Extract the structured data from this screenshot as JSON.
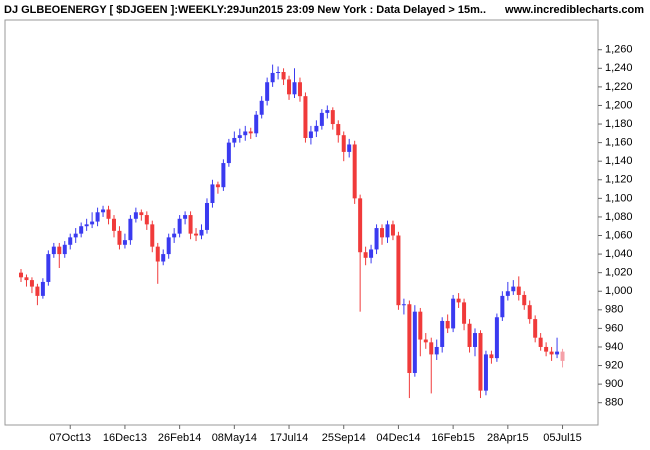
{
  "chart_data": {
    "type": "candlestick",
    "title": "DJ GLBEOENERGY [ $DJGEEN ]:WEEKLY:29Jun2015 23:09 New York : Data Delayed > 15m..",
    "source": "www.incrediblecharts.com",
    "categories": [
      null,
      null,
      null,
      null,
      null,
      null,
      null,
      null,
      null,
      "07Oct13",
      null,
      null,
      null,
      null,
      null,
      null,
      null,
      null,
      null,
      "16Dec13",
      null,
      null,
      null,
      null,
      null,
      null,
      null,
      null,
      null,
      "26Feb14",
      null,
      null,
      null,
      null,
      null,
      null,
      null,
      null,
      null,
      "08May14",
      null,
      null,
      null,
      null,
      null,
      null,
      null,
      null,
      null,
      "17Jul14",
      null,
      null,
      null,
      null,
      null,
      null,
      null,
      null,
      null,
      "25Sep14",
      null,
      null,
      null,
      null,
      null,
      null,
      null,
      null,
      null,
      "04Dec14",
      null,
      null,
      null,
      null,
      null,
      null,
      null,
      null,
      null,
      "16Feb15",
      null,
      null,
      null,
      null,
      null,
      null,
      null,
      null,
      null,
      "28Apr15",
      null,
      null,
      null,
      null,
      null,
      null,
      null,
      null,
      null,
      "05Jul15"
    ],
    "open": [
      1020,
      1015,
      1012,
      1005,
      995,
      1010,
      1040,
      1048,
      1040,
      1050,
      1058,
      1062,
      1070,
      1072,
      1075,
      1085,
      1088,
      1078,
      1065,
      1050,
      1055,
      1078,
      1085,
      1082,
      1072,
      1048,
      1032,
      1040,
      1058,
      1062,
      1078,
      1082,
      1062,
      1060,
      1066,
      1095,
      1115,
      1112,
      1138,
      1160,
      1165,
      1168,
      1172,
      1170,
      1190,
      1205,
      1225,
      1235,
      1236,
      1228,
      1212,
      1225,
      1210,
      1165,
      1172,
      1178,
      1192,
      1195,
      1180,
      1168,
      1150,
      1158,
      1100,
      1042,
      1036,
      1045,
      1068,
      1058,
      1072,
      1060,
      985,
      986,
      912,
      978,
      948,
      945,
      932,
      940,
      968,
      960,
      992,
      988,
      965,
      940,
      955,
      893,
      932,
      928,
      972,
      995,
      1000,
      1005,
      996,
      985,
      970,
      950,
      940,
      935,
      932,
      935
    ],
    "high": [
      1024,
      1018,
      1015,
      1008,
      1014,
      1044,
      1052,
      1052,
      1054,
      1062,
      1068,
      1074,
      1078,
      1085,
      1090,
      1092,
      1092,
      1082,
      1070,
      1062,
      1082,
      1090,
      1088,
      1086,
      1076,
      1052,
      1045,
      1062,
      1068,
      1082,
      1086,
      1086,
      1068,
      1072,
      1100,
      1120,
      1118,
      1142,
      1164,
      1172,
      1175,
      1178,
      1176,
      1194,
      1210,
      1230,
      1244,
      1242,
      1240,
      1232,
      1240,
      1230,
      1214,
      1178,
      1184,
      1196,
      1200,
      1198,
      1184,
      1172,
      1164,
      1162,
      1104,
      1048,
      1050,
      1072,
      1072,
      1076,
      1076,
      1064,
      992,
      990,
      985,
      982,
      955,
      950,
      948,
      972,
      975,
      996,
      998,
      992,
      970,
      960,
      958,
      936,
      936,
      976,
      1000,
      1010,
      1012,
      1016,
      1000,
      990,
      974,
      955,
      945,
      940,
      950,
      938
    ],
    "low": [
      1010,
      1005,
      998,
      985,
      992,
      1006,
      1036,
      1025,
      1036,
      1045,
      1052,
      1058,
      1065,
      1068,
      1070,
      1080,
      1072,
      1058,
      1045,
      1046,
      1050,
      1074,
      1076,
      1066,
      1042,
      1008,
      1028,
      1035,
      1052,
      1058,
      1072,
      1056,
      1054,
      1056,
      1062,
      1090,
      1105,
      1108,
      1134,
      1155,
      1160,
      1162,
      1164,
      1166,
      1186,
      1200,
      1220,
      1228,
      1222,
      1206,
      1208,
      1204,
      1160,
      1158,
      1166,
      1174,
      1186,
      1174,
      1160,
      1140,
      1144,
      1094,
      978,
      1028,
      1030,
      1040,
      1050,
      1052,
      1055,
      980,
      975,
      885,
      908,
      930,
      938,
      890,
      926,
      934,
      955,
      956,
      982,
      958,
      934,
      930,
      885,
      888,
      922,
      924,
      968,
      990,
      996,
      990,
      980,
      965,
      945,
      936,
      930,
      925,
      928,
      918
    ],
    "close": [
      1015,
      1012,
      1005,
      995,
      1010,
      1040,
      1048,
      1040,
      1050,
      1058,
      1062,
      1070,
      1072,
      1075,
      1085,
      1088,
      1078,
      1065,
      1050,
      1055,
      1078,
      1085,
      1082,
      1072,
      1048,
      1032,
      1040,
      1058,
      1062,
      1078,
      1082,
      1062,
      1060,
      1066,
      1095,
      1115,
      1112,
      1138,
      1160,
      1165,
      1168,
      1172,
      1170,
      1190,
      1205,
      1225,
      1235,
      1236,
      1228,
      1212,
      1225,
      1210,
      1165,
      1172,
      1178,
      1192,
      1195,
      1180,
      1168,
      1150,
      1158,
      1100,
      1042,
      1036,
      1045,
      1068,
      1058,
      1072,
      1060,
      985,
      986,
      912,
      978,
      948,
      945,
      932,
      940,
      968,
      960,
      992,
      988,
      965,
      940,
      955,
      893,
      932,
      928,
      972,
      995,
      1000,
      1005,
      996,
      985,
      970,
      950,
      940,
      935,
      932,
      935,
      925
    ],
    "up_color": "#3a3af0",
    "down_color": "#f03a3a",
    "current_color": "#f5a0a8",
    "ylim": [
      856,
      1292
    ],
    "yticks": [
      880,
      900,
      920,
      940,
      960,
      980,
      {
        "value": 1000,
        "label": "1,000"
      },
      {
        "value": 1020,
        "label": "1,020"
      },
      {
        "value": 1040,
        "label": "1,040"
      },
      {
        "value": 1060,
        "label": "1,060"
      },
      {
        "value": 1080,
        "label": "1,080"
      },
      {
        "value": 1100,
        "label": "1,100"
      },
      {
        "value": 1120,
        "label": "1,120"
      },
      {
        "value": 1140,
        "label": "1,140"
      },
      {
        "value": 1160,
        "label": "1,160"
      },
      {
        "value": 1180,
        "label": "1,180"
      },
      {
        "value": 1200,
        "label": "1,200"
      },
      {
        "value": 1220,
        "label": "1,220"
      },
      {
        "value": 1240,
        "label": "1,240"
      },
      {
        "value": 1260,
        "label": "1,260"
      }
    ],
    "grid": false
  }
}
